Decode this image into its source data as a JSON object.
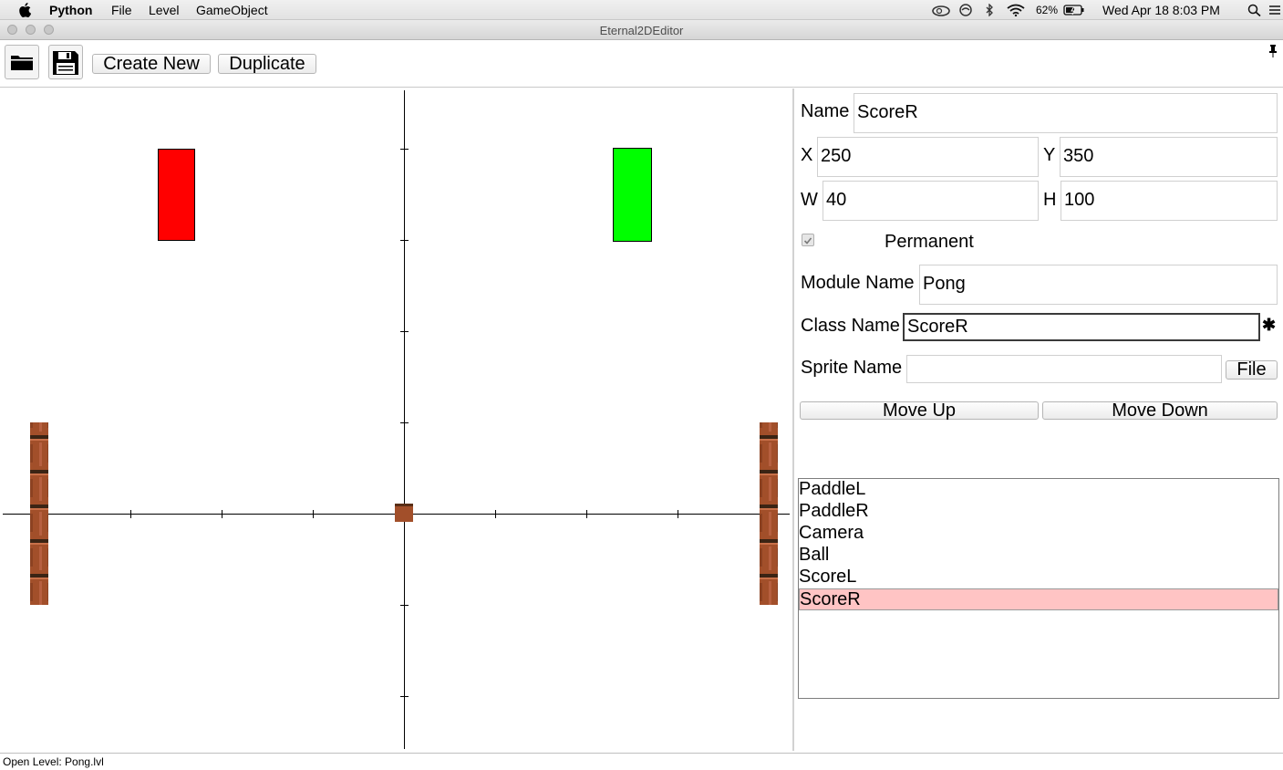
{
  "menubar": {
    "app_name": "Python",
    "items": [
      "File",
      "Level",
      "GameObject"
    ],
    "battery": "62%",
    "clock": "Wed Apr 18  8:03 PM"
  },
  "window": {
    "title": "Eternal2DEditor"
  },
  "toolbar": {
    "open_icon": "folder-icon",
    "save_icon": "floppy-disk-icon",
    "create_new_label": "Create New",
    "duplicate_label": "Duplicate",
    "pin_icon": "pushpin-icon"
  },
  "scene": {
    "colors": {
      "paddle_left": "#ff0000",
      "paddle_right": "#00ff00",
      "brick": "#a0522d",
      "axis": "#000000"
    },
    "objects": [
      {
        "name": "PaddleL",
        "color": "#ff0000"
      },
      {
        "name": "PaddleR",
        "color": "#00ff00"
      },
      {
        "name": "Ball",
        "color": "#a0522d"
      }
    ]
  },
  "properties": {
    "name_label": "Name",
    "name_value": "ScoreR",
    "x_label": "X",
    "x_value": "250",
    "y_label": "Y",
    "y_value": "350",
    "w_label": "W",
    "w_value": "40",
    "h_label": "H",
    "h_value": "100",
    "permanent_label": "Permanent",
    "permanent_checked": true,
    "module_label": "Module Name",
    "module_value": "Pong",
    "class_label": "Class Name",
    "class_value": "ScoreR",
    "class_modified_marker": "✱",
    "sprite_label": "Sprite Name",
    "sprite_value": "",
    "file_button": "File",
    "move_up": "Move Up",
    "move_down": "Move Down"
  },
  "object_list": {
    "items": [
      "PaddleL",
      "PaddleR",
      "Camera",
      "Ball",
      "ScoreL",
      "ScoreR"
    ],
    "selected": "ScoreR"
  },
  "status": {
    "text": "Open Level: Pong.lvl"
  }
}
